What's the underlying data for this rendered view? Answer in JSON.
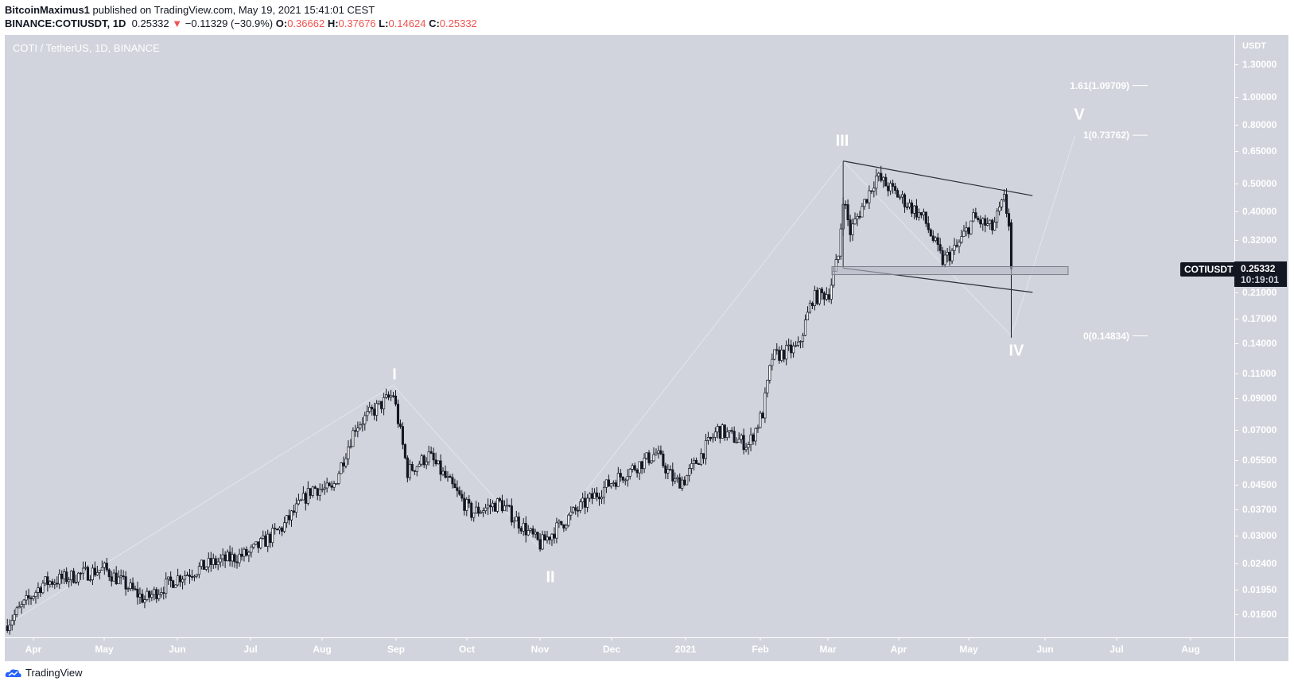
{
  "header": {
    "author": "BitcoinMaximus1",
    "published_text": "published on TradingView.com, May 19, 2021 15:41:01 CEST",
    "symbol": "BINANCE:COTIUSDT, 1D",
    "last": "0.25332",
    "change": "−0.11329 (−30.9%)",
    "o_label": "O:",
    "o": "0.36662",
    "h_label": "H:",
    "h": "0.37676",
    "l_label": "L:",
    "l": "0.14624",
    "c_label": "C:",
    "c": "0.25332"
  },
  "legend": "COTI / TetherUS, 1D, BINANCE",
  "price_axis": {
    "unit": "USDT",
    "ticks": [
      "1.30000",
      "1.00000",
      "0.80000",
      "0.65000",
      "0.50000",
      "0.40000",
      "0.32000",
      "0.21000",
      "0.17000",
      "0.14000",
      "0.11000",
      "0.09000",
      "0.07000",
      "0.05500",
      "0.04500",
      "0.03700",
      "0.03000",
      "0.02400",
      "0.01950",
      "0.01600"
    ],
    "symbol_tag": "COTIUSDT",
    "current_price": "0.25332",
    "countdown": "10:19:01"
  },
  "time_axis": {
    "labels": [
      "Apr",
      "May",
      "Jun",
      "Jul",
      "Aug",
      "Sep",
      "Oct",
      "Nov",
      "Dec",
      "2021",
      "Feb",
      "Mar",
      "Apr",
      "May",
      "Jun",
      "Jul",
      "Aug"
    ]
  },
  "fib_levels": [
    {
      "label": "1.61(1.09709)",
      "price": 1.09709
    },
    {
      "label": "1(0.73762)",
      "price": 0.73762
    },
    {
      "label": "0(0.14834)",
      "price": 0.14834
    }
  ],
  "waves": [
    "I",
    "II",
    "III",
    "IV",
    "V"
  ],
  "colors": {
    "bg": "#d1d4dc",
    "up_body": "#ffffff",
    "down_body": "#131722",
    "red": "#ef5350"
  },
  "footer": {
    "brand": "TradingView"
  },
  "chart_data": {
    "type": "candlestick",
    "title": "COTI / TetherUS, 1D, BINANCE",
    "scale": "log",
    "ylim": [
      0.0145,
      1.4
    ],
    "start_date": "2020-03-20",
    "close_waypoints": [
      [
        0,
        0.0146
      ],
      [
        16,
        0.0205
      ],
      [
        42,
        0.023
      ],
      [
        59,
        0.018
      ],
      [
        73,
        0.0215
      ],
      [
        87,
        0.024
      ],
      [
        103,
        0.026
      ],
      [
        117,
        0.032
      ],
      [
        130,
        0.044
      ],
      [
        138,
        0.043
      ],
      [
        148,
        0.072
      ],
      [
        164,
        0.093
      ],
      [
        170,
        0.05
      ],
      [
        179,
        0.057
      ],
      [
        197,
        0.036
      ],
      [
        209,
        0.039
      ],
      [
        226,
        0.028
      ],
      [
        240,
        0.036
      ],
      [
        256,
        0.046
      ],
      [
        275,
        0.058
      ],
      [
        283,
        0.046
      ],
      [
        287,
        0.047
      ],
      [
        301,
        0.07
      ],
      [
        314,
        0.062
      ],
      [
        320,
        0.08
      ],
      [
        324,
        0.125
      ],
      [
        335,
        0.135
      ],
      [
        341,
        0.2
      ],
      [
        348,
        0.21
      ],
      [
        352,
        0.28
      ],
      [
        354,
        0.45
      ],
      [
        357,
        0.34
      ],
      [
        368,
        0.53
      ],
      [
        378,
        0.45
      ],
      [
        388,
        0.38
      ],
      [
        396,
        0.27
      ],
      [
        402,
        0.3
      ],
      [
        409,
        0.38
      ],
      [
        417,
        0.35
      ],
      [
        422,
        0.44
      ],
      [
        424,
        0.3666
      ]
    ],
    "last_candle": {
      "day": 425,
      "o": 0.36662,
      "h": 0.37676,
      "l": 0.14624,
      "c": 0.25332
    },
    "annotations": {
      "channel_upper": [
        [
          354,
          0.6
        ],
        [
          434,
          0.455
        ]
      ],
      "channel_lower": [
        [
          354,
          0.255
        ],
        [
          434,
          0.21
        ]
      ],
      "support_zone": [
        0.242,
        0.258
      ],
      "wave_path": [
        [
          0,
          0.0146
        ],
        [
          164,
          0.1
        ],
        [
          226,
          0.027
        ],
        [
          354,
          0.6
        ],
        [
          425,
          0.14834
        ],
        [
          452,
          0.7376
        ]
      ]
    }
  }
}
